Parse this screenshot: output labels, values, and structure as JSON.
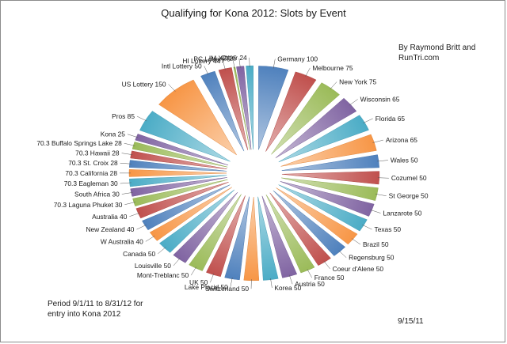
{
  "chart_data": {
    "type": "pie",
    "title": "Qualifying for Kona 2012: Slots by Event",
    "annotations": {
      "author": "By Raymond Britt and RunTri.com",
      "period": "Period 9/1/11 to 8/31/12 for entry into Kona 2012",
      "date": "9/15/11"
    },
    "slices": [
      {
        "label": "Germany",
        "value": 100,
        "color": "#4f81bd"
      },
      {
        "label": "Melbourne",
        "value": 75,
        "color": "#c0504d"
      },
      {
        "label": "New York",
        "value": 75,
        "color": "#9bbb59"
      },
      {
        "label": "Wisconsin",
        "value": 65,
        "color": "#8064a2"
      },
      {
        "label": "Florida",
        "value": 65,
        "color": "#4bacc6"
      },
      {
        "label": "Arizona",
        "value": 65,
        "color": "#f79646"
      },
      {
        "label": "Wales",
        "value": 50,
        "color": "#4f81bd"
      },
      {
        "label": "Cozumel",
        "value": 50,
        "color": "#c0504d"
      },
      {
        "label": "St George",
        "value": 50,
        "color": "#9bbb59"
      },
      {
        "label": "Lanzarote",
        "value": 50,
        "color": "#8064a2"
      },
      {
        "label": "Texas",
        "value": 50,
        "color": "#4bacc6"
      },
      {
        "label": "Brazil",
        "value": 50,
        "color": "#f79646"
      },
      {
        "label": "Regensburg",
        "value": 50,
        "color": "#4f81bd"
      },
      {
        "label": "Coeur d'Alene",
        "value": 50,
        "color": "#c0504d"
      },
      {
        "label": "France",
        "value": 50,
        "color": "#9bbb59"
      },
      {
        "label": "Austria",
        "value": 50,
        "color": "#8064a2"
      },
      {
        "label": "Korea",
        "value": 50,
        "color": "#4bacc6"
      },
      {
        "label": "Switzerland",
        "value": 50,
        "color": "#f79646"
      },
      {
        "label": "Lake Placid",
        "value": 50,
        "color": "#4f81bd"
      },
      {
        "label": "UK",
        "value": 50,
        "color": "#c0504d"
      },
      {
        "label": "Mont-Treblanc",
        "value": 50,
        "color": "#9bbb59"
      },
      {
        "label": "Louisville",
        "value": 50,
        "color": "#8064a2"
      },
      {
        "label": "Canada",
        "value": 50,
        "color": "#4bacc6"
      },
      {
        "label": "W Australia",
        "value": 40,
        "color": "#f79646"
      },
      {
        "label": "New Zealand",
        "value": 40,
        "color": "#4f81bd"
      },
      {
        "label": "Australia",
        "value": 40,
        "color": "#c0504d"
      },
      {
        "label": "70.3 Laguna Phuket",
        "value": 30,
        "color": "#9bbb59"
      },
      {
        "label": "South Africa",
        "value": 30,
        "color": "#8064a2"
      },
      {
        "label": "70.3 Eagleman",
        "value": 30,
        "color": "#4bacc6"
      },
      {
        "label": "70.3 California",
        "value": 28,
        "color": "#f79646"
      },
      {
        "label": "70.3 St. Croix",
        "value": 28,
        "color": "#4f81bd"
      },
      {
        "label": "70.3 Hawaii",
        "value": 28,
        "color": "#c0504d"
      },
      {
        "label": "70.3 Buffalo Springs Lake",
        "value": 28,
        "color": "#9bbb59"
      },
      {
        "label": "Kona",
        "value": 25,
        "color": "#8064a2"
      },
      {
        "label": "Pros",
        "value": 85,
        "color": "#4bacc6"
      },
      {
        "label": "US Lottery",
        "value": 150,
        "color": "#f79646"
      },
      {
        "label": "Intl Lottery",
        "value": 50,
        "color": "#4f81bd"
      },
      {
        "label": "HI Lottery",
        "value": 44,
        "color": "#c0504d"
      },
      {
        "label": "PC Lottery",
        "value": 5,
        "color": "#9bbb59"
      },
      {
        "label": "IM XC",
        "value": 25,
        "color": "#8064a2"
      },
      {
        "label": "Other",
        "value": 24,
        "color": "#4bacc6"
      }
    ]
  }
}
